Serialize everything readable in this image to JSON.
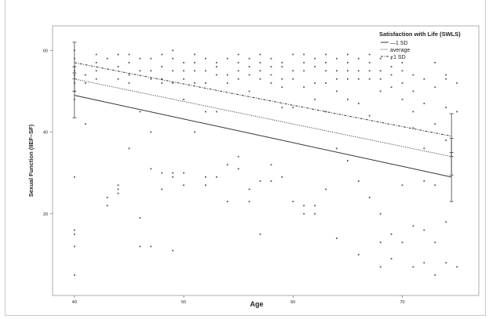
{
  "chart_data": {
    "type": "scatter",
    "xlabel": "Age",
    "ylabel": "Sexual Function (IIEF–SF)",
    "xlim": [
      38,
      77
    ],
    "ylim": [
      0,
      66
    ],
    "xticks": [
      40,
      50,
      60,
      70
    ],
    "yticks": [
      20,
      40,
      60
    ],
    "grid": false,
    "legend": {
      "title": "Satisfaction with Life (SWLS)",
      "position": "top-right",
      "entries": [
        "—1 SD",
        "average",
        "+1 SD"
      ]
    },
    "series": [
      {
        "name": "—1 SD",
        "style": "solid",
        "x": [
          40,
          74.5
        ],
        "y": [
          49,
          29
        ],
        "ci_start": [
          43.5,
          54.5
        ],
        "ci_end": [
          23,
          35
        ]
      },
      {
        "name": "average",
        "style": "dotted",
        "x": [
          40,
          74.5
        ],
        "y": [
          53,
          34
        ],
        "ci_start": [
          50,
          56
        ],
        "ci_end": [
          29.5,
          38.5
        ]
      },
      {
        "name": "+1 SD",
        "style": "dashdot",
        "x": [
          40,
          74.5
        ],
        "y": [
          57,
          39
        ],
        "ci_start": [
          53,
          62
        ],
        "ci_end": [
          34,
          44.5
        ]
      }
    ],
    "points": {
      "x": [
        40,
        40,
        40,
        40,
        40,
        40,
        40,
        40,
        40,
        40,
        40,
        40,
        40,
        41,
        41,
        41,
        42,
        42,
        42,
        42,
        43,
        43,
        43,
        44,
        44,
        44,
        44,
        44,
        44,
        45,
        45,
        45,
        45,
        45,
        46,
        46,
        46,
        46,
        46,
        47,
        47,
        47,
        47,
        47,
        47,
        48,
        48,
        48,
        48,
        48,
        48,
        49,
        49,
        49,
        49,
        49,
        49,
        49,
        50,
        50,
        50,
        50,
        50,
        50,
        51,
        51,
        51,
        51,
        51,
        52,
        52,
        52,
        52,
        52,
        52,
        53,
        53,
        53,
        53,
        53,
        54,
        54,
        54,
        54,
        54,
        55,
        55,
        55,
        55,
        55,
        55,
        56,
        56,
        56,
        56,
        56,
        56,
        57,
        57,
        57,
        57,
        57,
        57,
        58,
        58,
        58,
        58,
        58,
        58,
        59,
        59,
        59,
        59,
        59,
        59,
        60,
        60,
        60,
        60,
        60,
        61,
        61,
        61,
        61,
        61,
        61,
        62,
        62,
        62,
        62,
        62,
        62,
        63,
        63,
        63,
        63,
        63,
        63,
        64,
        64,
        64,
        64,
        64,
        64,
        65,
        65,
        65,
        65,
        65,
        65,
        66,
        66,
        66,
        66,
        66,
        66,
        67,
        67,
        67,
        67,
        67,
        67,
        68,
        68,
        68,
        68,
        68,
        68,
        68,
        69,
        69,
        69,
        69,
        69,
        69,
        70,
        70,
        70,
        70,
        70,
        70,
        71,
        71,
        71,
        71,
        71,
        71,
        72,
        72,
        72,
        72,
        72,
        72,
        73,
        73,
        73,
        73,
        73,
        73,
        74,
        74,
        74,
        74,
        74,
        74,
        75,
        75,
        75
      ],
      "y": [
        60,
        58,
        56,
        55,
        54,
        52,
        50,
        48,
        29,
        16,
        15,
        12,
        5,
        54,
        52,
        42,
        59,
        57,
        55,
        53,
        58,
        24,
        22,
        59,
        56,
        27,
        26,
        25,
        53,
        59,
        57,
        54,
        52,
        36,
        58,
        55,
        45,
        19,
        12,
        58,
        55,
        53,
        40,
        31,
        12,
        59,
        56,
        53,
        52,
        30,
        26,
        60,
        58,
        55,
        52,
        30,
        29,
        11,
        57,
        55,
        53,
        48,
        30,
        27,
        59,
        57,
        55,
        52,
        40,
        58,
        55,
        52,
        45,
        29,
        27,
        57,
        56,
        54,
        45,
        29,
        58,
        54,
        52,
        32,
        23,
        59,
        57,
        55,
        53,
        34,
        31,
        58,
        56,
        54,
        50,
        26,
        23,
        59,
        57,
        55,
        53,
        28,
        15,
        58,
        56,
        54,
        52,
        32,
        28,
        57,
        56,
        53,
        51,
        46,
        29,
        59,
        55,
        53,
        46,
        23,
        59,
        57,
        55,
        51,
        22,
        20,
        58,
        56,
        52,
        48,
        22,
        20,
        59,
        57,
        55,
        52,
        45,
        26,
        58,
        55,
        53,
        50,
        36,
        14,
        59,
        57,
        55,
        53,
        48,
        33,
        58,
        55,
        53,
        47,
        28,
        10,
        59,
        57,
        55,
        53,
        44,
        24,
        58,
        55,
        53,
        50,
        20,
        13,
        7,
        58,
        56,
        54,
        51,
        15,
        9,
        57,
        55,
        52,
        48,
        27,
        13,
        54,
        50,
        45,
        41,
        17,
        7,
        53,
        47,
        36,
        28,
        16,
        8,
        57,
        51,
        42,
        27,
        13,
        5,
        54,
        53,
        46,
        38,
        18,
        8,
        52,
        45,
        7
      ]
    }
  }
}
